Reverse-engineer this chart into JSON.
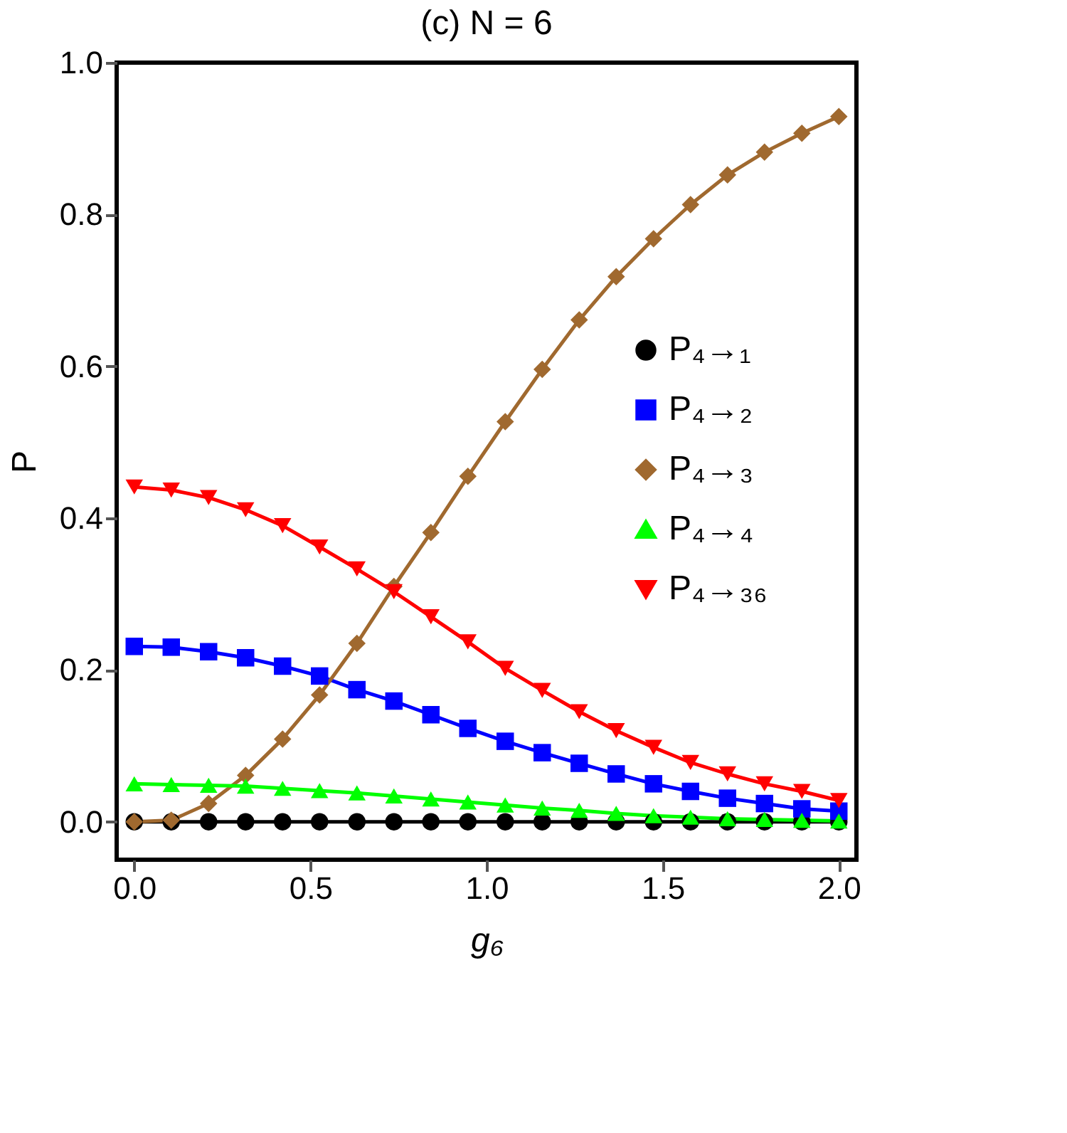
{
  "chart_data": {
    "type": "line",
    "title": "(c) N = 6",
    "xlabel": "g₆",
    "ylabel": "P",
    "x": [
      0,
      0.105,
      0.211,
      0.316,
      0.421,
      0.526,
      0.632,
      0.737,
      0.842,
      0.947,
      1.053,
      1.158,
      1.263,
      1.368,
      1.474,
      1.579,
      1.684,
      1.789,
      1.895,
      2.0
    ],
    "series": [
      {
        "name": "P₄→₁",
        "color": "#000000",
        "marker": "circle",
        "values": [
          0,
          0,
          0,
          0,
          0,
          0,
          0,
          0,
          0,
          0,
          0,
          0,
          0,
          0,
          0,
          0,
          0,
          0,
          0,
          0
        ]
      },
      {
        "name": "P₄→₂",
        "color": "#0000ff",
        "marker": "square",
        "values": [
          0.231,
          0.23,
          0.224,
          0.216,
          0.205,
          0.192,
          0.174,
          0.159,
          0.141,
          0.123,
          0.106,
          0.091,
          0.077,
          0.063,
          0.05,
          0.04,
          0.031,
          0.024,
          0.017,
          0.014
        ]
      },
      {
        "name": "P₄→₃",
        "color": "#a0692f",
        "marker": "diamond",
        "values": [
          0,
          0.002,
          0.024,
          0.061,
          0.109,
          0.167,
          0.235,
          0.31,
          0.381,
          0.455,
          0.527,
          0.596,
          0.661,
          0.718,
          0.768,
          0.813,
          0.852,
          0.882,
          0.907,
          0.929
        ]
      },
      {
        "name": "P₄→₄",
        "color": "#00ff00",
        "marker": "triangle",
        "values": [
          0.05,
          0.049,
          0.048,
          0.047,
          0.044,
          0.041,
          0.038,
          0.034,
          0.03,
          0.026,
          0.022,
          0.018,
          0.015,
          0.011,
          0.008,
          0.006,
          0.004,
          0.003,
          0.002,
          0.001
        ]
      },
      {
        "name": "P₄→₃₆",
        "color": "#ff0000",
        "marker": "triangle_down",
        "values": [
          0.441,
          0.437,
          0.427,
          0.411,
          0.39,
          0.362,
          0.333,
          0.303,
          0.27,
          0.237,
          0.202,
          0.173,
          0.145,
          0.12,
          0.098,
          0.078,
          0.063,
          0.05,
          0.04,
          0.028
        ]
      }
    ],
    "xlim": [
      -0.05,
      2.05
    ],
    "xticks": [
      {
        "value": 0,
        "label": "0.0"
      },
      0.5,
      {
        "value": 1,
        "label": "1.0"
      },
      1.5,
      {
        "value": 2,
        "label": "2.0"
      }
    ],
    "ylim": [
      -0.05,
      1.0
    ],
    "yticks": [
      {
        "value": 0,
        "label": "0.0"
      },
      0.2,
      0.4,
      0.6,
      0.8,
      {
        "value": 1,
        "label": "1.0"
      }
    ],
    "grid": false,
    "legend": "right",
    "line_style": "solid"
  }
}
